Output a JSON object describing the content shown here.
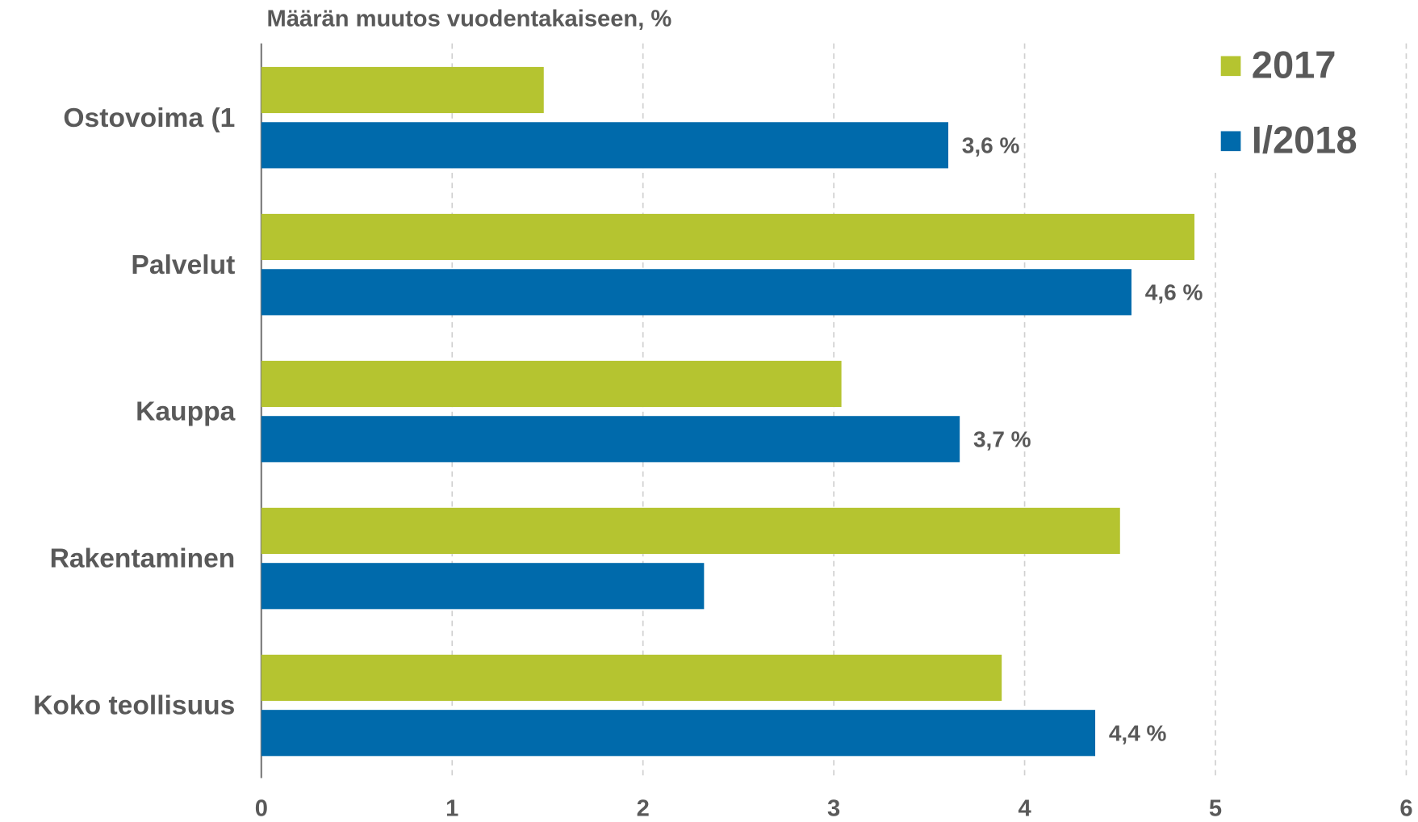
{
  "chart_data": {
    "type": "bar",
    "orientation": "horizontal",
    "title": "Määrän muutos vuodentakaiseen, %",
    "categories": [
      "Ostovoima (1",
      "Palvelut",
      "Kauppa",
      "Rakentaminen",
      "Koko teollisuus"
    ],
    "series": [
      {
        "name": "2017",
        "color": "#b5c430",
        "values": [
          1.48,
          4.89,
          3.04,
          4.5,
          3.88
        ]
      },
      {
        "name": "I/2018",
        "color": "#006aab",
        "values": [
          3.6,
          4.56,
          3.66,
          2.32,
          4.37
        ],
        "value_labels": [
          "3,6 %",
          "4,6 %",
          "3,7 %",
          null,
          "4,4 %"
        ]
      }
    ],
    "xlim": [
      0,
      6
    ],
    "xticks": [
      0,
      1,
      2,
      3,
      4,
      5,
      6
    ],
    "grid": true,
    "legend": "upper right"
  }
}
